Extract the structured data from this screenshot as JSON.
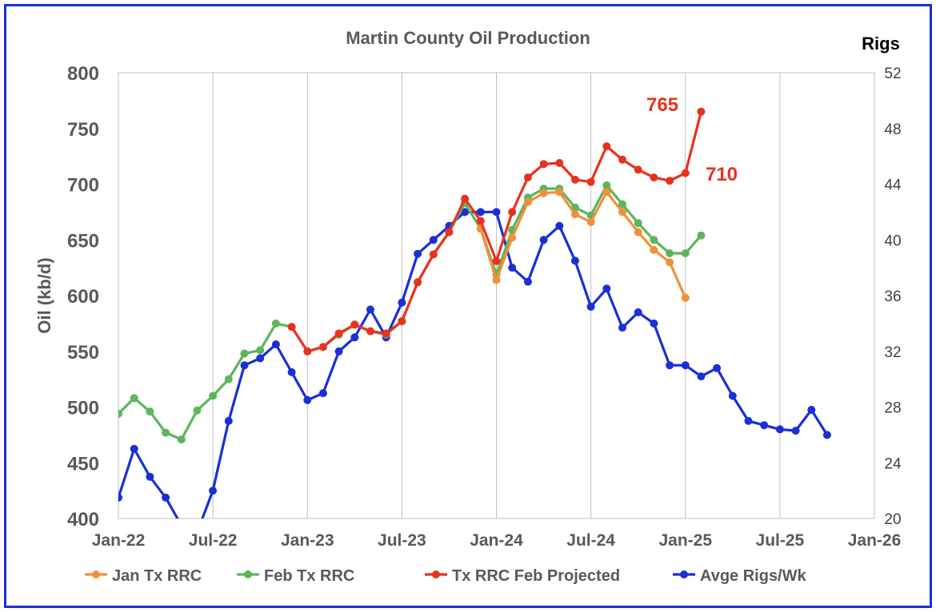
{
  "chart_data": {
    "type": "line",
    "title": "Martin County Oil Production",
    "ylabel": "Oil (kb/d)",
    "y2label": "Rigs",
    "x_ticks": [
      "Jan-22",
      "Jul-22",
      "Jan-23",
      "Jul-23",
      "Jan-24",
      "Jul-24",
      "Jan-25",
      "Jul-25",
      "Jan-26"
    ],
    "ylim": [
      400,
      800
    ],
    "y_ticks": [
      400,
      450,
      500,
      550,
      600,
      650,
      700,
      750,
      800
    ],
    "y2lim": [
      20,
      52
    ],
    "y2_ticks": [
      20,
      24,
      28,
      32,
      36,
      40,
      44,
      48,
      52
    ],
    "grid": "vertical",
    "legend": "bottom",
    "colors": {
      "jan": "#f0913a",
      "feb": "#5db55c",
      "proj": "#e8321f",
      "rigs": "#1a2fd6"
    },
    "series": [
      {
        "name": "Jan Tx RRC",
        "color_key": "jan",
        "axis": "left",
        "x": [
          "2023-12",
          "2024-01",
          "2024-02",
          "2024-03",
          "2024-04",
          "2024-05",
          "2024-06",
          "2024-07",
          "2024-08",
          "2024-09",
          "2024-10",
          "2024-11",
          "2024-12",
          "2025-01"
        ],
        "values": [
          660,
          614,
          652,
          684,
          692,
          693,
          673,
          666,
          693,
          675,
          657,
          641,
          630,
          598
        ]
      },
      {
        "name": "Feb Tx RRC",
        "color_key": "feb",
        "axis": "left",
        "x": [
          "2022-01",
          "2022-02",
          "2022-03",
          "2022-04",
          "2022-05",
          "2022-06",
          "2022-07",
          "2022-08",
          "2022-09",
          "2022-10",
          "2022-11",
          "2022-12",
          "2023-01",
          "2023-02",
          "2023-03",
          "2023-04",
          "2023-05",
          "2023-06",
          "2023-07",
          "2023-08",
          "2023-09",
          "2023-10",
          "2023-11",
          "2023-12",
          "2024-01",
          "2024-02",
          "2024-03",
          "2024-04",
          "2024-05",
          "2024-06",
          "2024-07",
          "2024-08",
          "2024-09",
          "2024-10",
          "2024-11",
          "2024-12",
          "2025-01",
          "2025-02"
        ],
        "values": [
          494,
          508,
          496,
          477,
          471,
          497,
          510,
          525,
          548,
          551,
          575,
          572,
          550,
          554,
          565,
          574,
          568,
          565,
          577,
          612,
          637,
          657,
          683,
          660,
          619,
          659,
          688,
          696,
          696,
          679,
          672,
          699,
          682,
          665,
          650,
          638,
          638,
          654
        ]
      },
      {
        "name": "Tx RRC Feb Projected",
        "color_key": "proj",
        "axis": "left",
        "x": [
          "2022-12",
          "2023-01",
          "2023-02",
          "2023-03",
          "2023-04",
          "2023-05",
          "2023-06",
          "2023-07",
          "2023-08",
          "2023-09",
          "2023-10",
          "2023-11",
          "2023-12",
          "2024-01",
          "2024-02",
          "2024-03",
          "2024-04",
          "2024-05",
          "2024-06",
          "2024-07",
          "2024-08",
          "2024-09",
          "2024-10",
          "2024-11",
          "2024-12",
          "2025-01",
          "2025-02"
        ],
        "values": [
          572,
          550,
          554,
          566,
          574,
          568,
          566,
          577,
          612,
          637,
          657,
          687,
          667,
          631,
          675,
          706,
          718,
          719,
          704,
          702,
          734,
          722,
          713,
          706,
          703,
          710,
          765
        ]
      },
      {
        "name": "Avge Rigs/Wk",
        "color_key": "rigs",
        "axis": "right",
        "x": [
          "2022-01",
          "2022-02",
          "2022-03",
          "2022-04",
          "2022-05",
          "2022-06",
          "2022-07",
          "2022-08",
          "2022-09",
          "2022-10",
          "2022-11",
          "2022-12",
          "2023-01",
          "2023-02",
          "2023-03",
          "2023-04",
          "2023-05",
          "2023-06",
          "2023-07",
          "2023-08",
          "2023-09",
          "2023-10",
          "2023-11",
          "2023-12",
          "2024-01",
          "2024-02",
          "2024-03",
          "2024-04",
          "2024-05",
          "2024-06",
          "2024-07",
          "2024-08",
          "2024-09",
          "2024-10",
          "2024-11",
          "2024-12",
          "2025-01",
          "2025-02",
          "2025-03",
          "2025-04",
          "2025-05",
          "2025-06",
          "2025-07",
          "2025-08",
          "2025-09",
          "2025-10"
        ],
        "values": [
          21.5,
          25,
          23,
          21.5,
          19.5,
          19,
          22,
          27,
          31,
          31.5,
          32.5,
          30.5,
          28.5,
          29,
          32,
          33,
          35,
          33,
          35.5,
          39,
          40,
          41,
          42,
          42,
          42,
          38,
          37,
          40,
          41,
          38.5,
          35.2,
          36.5,
          33.7,
          34.8,
          34,
          31,
          31,
          30.2,
          30.8,
          28.8,
          27,
          26.7,
          26.4,
          26.3,
          27.8,
          26
        ]
      }
    ],
    "annotations": [
      {
        "text": "765",
        "color_key": "proj"
      },
      {
        "text": "710",
        "color_key": "proj"
      }
    ]
  }
}
